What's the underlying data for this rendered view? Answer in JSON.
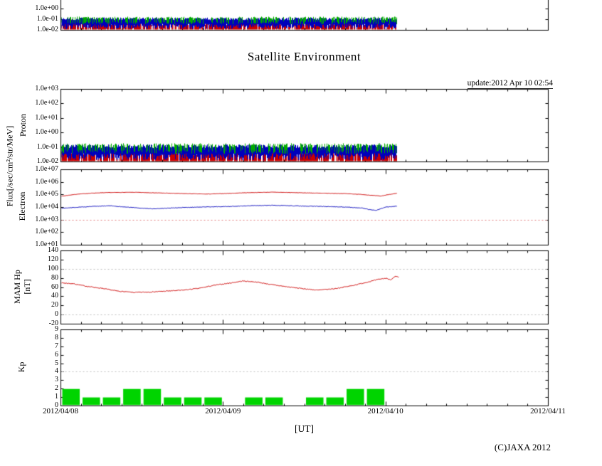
{
  "title": "Satellite Environment",
  "update_text": "update:2012 Apr 10 02:54",
  "xlabel": "[UT]",
  "copyright": "(C)JAXA 2012",
  "labels": {
    "flux_axis": "Flux[/sec/cm²/str/MeV]"
  },
  "x_axis": {
    "tick_labels": [
      {
        "label": "2012/04/08",
        "t": 0
      },
      {
        "label": "2012/04/09",
        "t": 1
      },
      {
        "label": "2012/04/10",
        "t": 2
      },
      {
        "label": "2012/04/11",
        "t": 3
      }
    ],
    "minor_tick_hours": 3,
    "range_days": [
      0,
      3
    ]
  },
  "chart_data": [
    {
      "id": "proton_partial",
      "type": "noise-band",
      "note": "cut-off bottom of a proton flux panel at top of page",
      "scale": "log",
      "yticks": [
        {
          "label": "1.0e+00",
          "log": 0
        },
        {
          "label": "1.0e-01",
          "log": -1
        },
        {
          "label": "1.0e-02",
          "log": -2
        }
      ],
      "t_end": 2.07,
      "series": [
        {
          "name": "proton-ch-red",
          "color": "#cc0000",
          "log_lo": -2.02,
          "lo_var": 0.06,
          "hi_base": -1.0,
          "hi_var": 0.55,
          "density": 0.8
        },
        {
          "name": "proton-ch-blue",
          "color": "#0000bb",
          "log_lo": -1.9,
          "lo_var": 0.5,
          "hi_base": -0.8,
          "hi_var": 0.25,
          "density": 1.0
        },
        {
          "name": "proton-ch-green",
          "color": "#00aa00",
          "log_lo": -1.45,
          "lo_var": 0.3,
          "hi_base": -0.72,
          "hi_var": 0.18,
          "density": 0.45
        }
      ]
    },
    {
      "id": "proton",
      "ylabel": "Proton",
      "type": "noise-band",
      "scale": "log",
      "ylog_range": [
        -2,
        3
      ],
      "yticks": [
        {
          "label": "1.0e+03",
          "log": 3
        },
        {
          "label": "1.0e+02",
          "log": 2
        },
        {
          "label": "1.0e+01",
          "log": 1
        },
        {
          "label": "1.0e+00",
          "log": 0
        },
        {
          "label": "1.0e-01",
          "log": -1
        },
        {
          "label": "1.0e-02",
          "log": -2
        }
      ],
      "t_end": 2.07,
      "series": [
        {
          "name": "proton-ch-red",
          "color": "#cc0000",
          "log_lo": -2.02,
          "lo_var": 0.06,
          "hi_base": -1.0,
          "hi_var": 0.55,
          "density": 0.8
        },
        {
          "name": "proton-ch-blue",
          "color": "#0000bb",
          "log_lo": -1.9,
          "lo_var": 0.5,
          "hi_base": -0.8,
          "hi_var": 0.25,
          "density": 1.0
        },
        {
          "name": "proton-ch-green",
          "color": "#00aa00",
          "log_lo": -1.45,
          "lo_var": 0.3,
          "hi_base": -0.72,
          "hi_var": 0.18,
          "density": 0.45
        }
      ]
    },
    {
      "id": "electron",
      "ylabel": "Electron",
      "type": "line",
      "scale": "log",
      "ylog_range": [
        1,
        7
      ],
      "yticks": [
        {
          "label": "1.0e+07",
          "log": 7
        },
        {
          "label": "1.0e+06",
          "log": 6
        },
        {
          "label": "1.0e+05",
          "log": 5
        },
        {
          "label": "1.0e+04",
          "log": 4
        },
        {
          "label": "1.0e+03",
          "log": 3
        },
        {
          "label": "1.0e+02",
          "log": 2
        },
        {
          "label": "1.0e+01",
          "log": 1
        }
      ],
      "gridlines": [
        {
          "log": 3,
          "color": "#e07b7b"
        }
      ],
      "series": [
        {
          "name": "electron-high",
          "color": "#cc0000",
          "jitter": 0.012,
          "points": [
            [
              0,
              4.88
            ],
            [
              0.05,
              4.97
            ],
            [
              0.1,
              5.05
            ],
            [
              0.2,
              5.14
            ],
            [
              0.3,
              5.18
            ],
            [
              0.45,
              5.2
            ],
            [
              0.6,
              5.15
            ],
            [
              0.75,
              5.1
            ],
            [
              0.9,
              5.06
            ],
            [
              1.0,
              5.1
            ],
            [
              1.15,
              5.17
            ],
            [
              1.3,
              5.21
            ],
            [
              1.45,
              5.17
            ],
            [
              1.6,
              5.13
            ],
            [
              1.75,
              5.1
            ],
            [
              1.85,
              5.03
            ],
            [
              1.92,
              4.95
            ],
            [
              1.97,
              4.9
            ],
            [
              2.02,
              5.03
            ],
            [
              2.07,
              5.12
            ]
          ]
        },
        {
          "name": "electron-low",
          "color": "#0000bb",
          "jitter": 0.02,
          "points": [
            [
              0,
              3.93
            ],
            [
              0.1,
              4.0
            ],
            [
              0.2,
              4.08
            ],
            [
              0.3,
              4.13
            ],
            [
              0.4,
              4.03
            ],
            [
              0.5,
              3.93
            ],
            [
              0.57,
              3.88
            ],
            [
              0.65,
              3.93
            ],
            [
              0.75,
              3.99
            ],
            [
              0.9,
              4.04
            ],
            [
              1.05,
              4.08
            ],
            [
              1.2,
              4.15
            ],
            [
              1.3,
              4.17
            ],
            [
              1.45,
              4.12
            ],
            [
              1.6,
              4.08
            ],
            [
              1.75,
              4.02
            ],
            [
              1.85,
              3.96
            ],
            [
              1.9,
              3.82
            ],
            [
              1.94,
              3.76
            ],
            [
              2.0,
              4.02
            ],
            [
              2.07,
              4.1
            ]
          ]
        }
      ]
    },
    {
      "id": "mam_hp",
      "ylabel_lines": [
        "MAM Hp",
        "[nT]"
      ],
      "type": "line",
      "scale": "linear",
      "ylim": [
        -20,
        140
      ],
      "yticks": [
        {
          "label": "140",
          "value": 140
        },
        {
          "label": "120",
          "value": 120
        },
        {
          "label": "100",
          "value": 100
        },
        {
          "label": "80",
          "value": 80
        },
        {
          "label": "60",
          "value": 60
        },
        {
          "label": "40",
          "value": 40
        },
        {
          "label": "20",
          "value": 20
        },
        {
          "label": "0",
          "value": 0
        },
        {
          "label": "-20",
          "value": -20
        }
      ],
      "gridlines": [
        {
          "value": 100,
          "color": "#bdbdbd"
        },
        {
          "value": 0,
          "color": "#bdbdbd"
        }
      ],
      "series": [
        {
          "name": "hp-magnetic-field",
          "color": "#cc0000",
          "jitter": 0.9,
          "points": [
            [
              0,
              70
            ],
            [
              0.08,
              68
            ],
            [
              0.15,
              63
            ],
            [
              0.25,
              58
            ],
            [
              0.35,
              52
            ],
            [
              0.45,
              49
            ],
            [
              0.55,
              50
            ],
            [
              0.65,
              52
            ],
            [
              0.75,
              54
            ],
            [
              0.85,
              58
            ],
            [
              0.95,
              65
            ],
            [
              1.05,
              70
            ],
            [
              1.12,
              74
            ],
            [
              1.2,
              72
            ],
            [
              1.3,
              66
            ],
            [
              1.4,
              61
            ],
            [
              1.5,
              57
            ],
            [
              1.58,
              54
            ],
            [
              1.68,
              57
            ],
            [
              1.78,
              63
            ],
            [
              1.88,
              71
            ],
            [
              1.96,
              78
            ],
            [
              2.0,
              80
            ],
            [
              2.03,
              77
            ],
            [
              2.06,
              84
            ],
            [
              2.08,
              82
            ]
          ]
        }
      ]
    },
    {
      "id": "kp",
      "ylabel": "Kp",
      "type": "bar",
      "scale": "linear",
      "ylim": [
        0,
        9
      ],
      "yticks": [
        {
          "label": "9",
          "value": 9
        },
        {
          "label": "8",
          "value": 8
        },
        {
          "label": "7",
          "value": 7
        },
        {
          "label": "6",
          "value": 6
        },
        {
          "label": "5",
          "value": 5
        },
        {
          "label": "4",
          "value": 4
        },
        {
          "label": "3",
          "value": 3
        },
        {
          "label": "2",
          "value": 2
        },
        {
          "label": "1",
          "value": 1
        },
        {
          "label": "0",
          "value": 0
        }
      ],
      "gridlines": [
        {
          "value": 4,
          "color": "#c4c4c4"
        }
      ],
      "bar_color": "#00d400",
      "bin_hours": 3,
      "values": [
        2,
        1,
        1,
        2,
        2,
        1,
        1,
        1,
        0,
        1,
        1,
        0,
        1,
        1,
        2,
        2
      ]
    }
  ]
}
